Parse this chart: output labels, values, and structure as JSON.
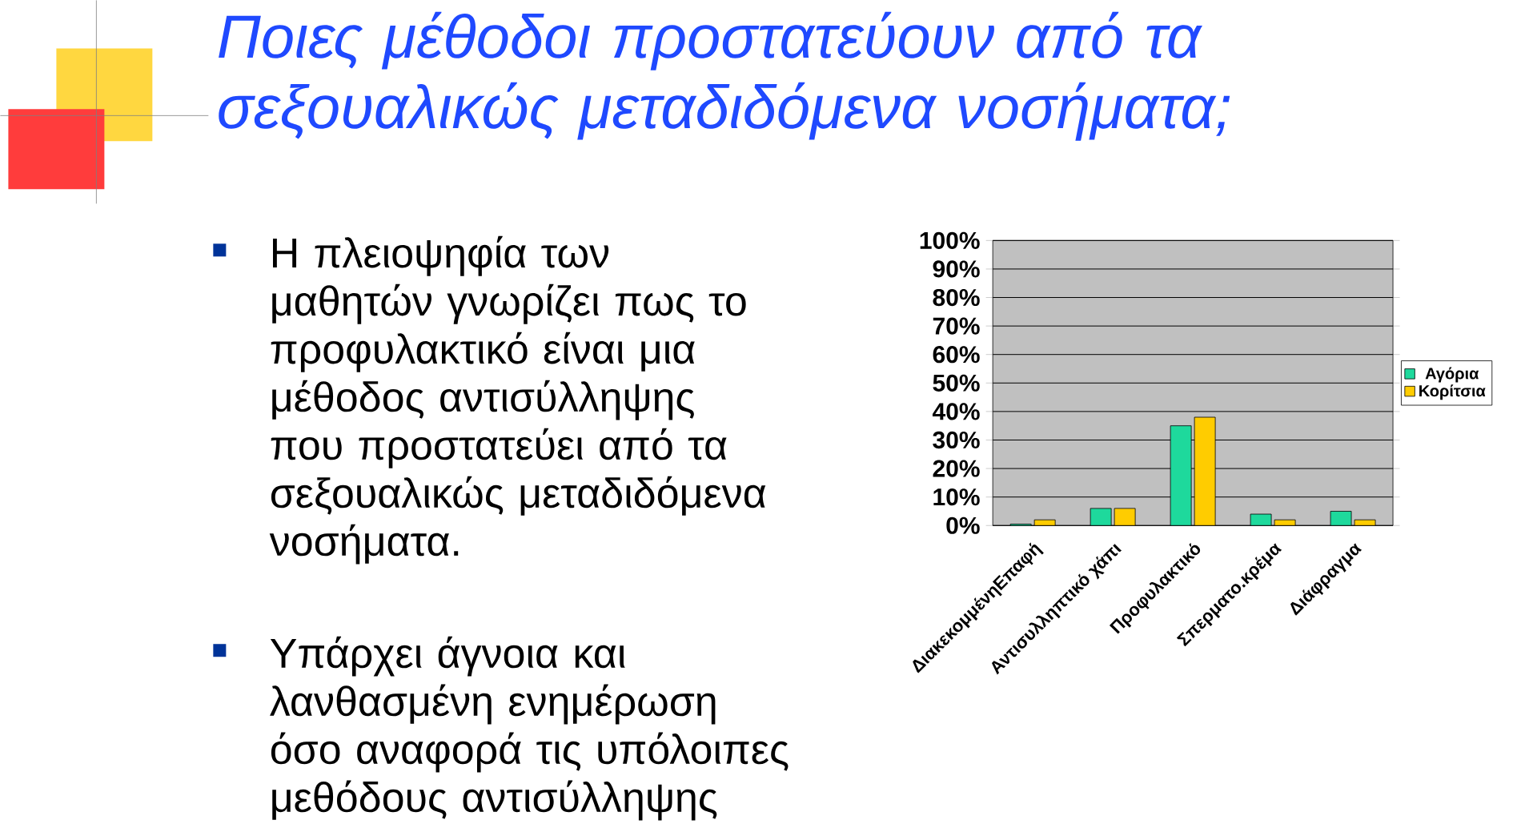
{
  "chart_data": {
    "type": "bar",
    "title": "Ποιες μέθοδοι προστατεύουν από τα σεξουαλικώς μεταδιδόμενα νοσήματα;",
    "annotations": [
      "Η πλειοψηφία των μαθητών γνωρίζει πως το προφυλακτικό είναι μια μέθοδος αντισύλληψης που προστατεύει από τα σεξουαλικώς μεταδιδόμενα νοσήματα.",
      "Υπάρχει άγνοια και λανθασμένη ενημέρωση όσο αναφορά τις υπόλοιπες μεθόδους αντισύλληψης"
    ],
    "categories": [
      "ΔιακεκομμένηΕπαφή",
      "Αντισυλληπτικό χάπι",
      "Προφυλακτικό",
      "Σπερματο.κρέμα",
      "Διάφραγμα"
    ],
    "series": [
      {
        "name": "Αγόρια",
        "color": "#1ed99c",
        "values": [
          0.5,
          6,
          35,
          4,
          5
        ]
      },
      {
        "name": "Κορίτσια",
        "color": "#ffcc00",
        "values": [
          2,
          6,
          38,
          2,
          2
        ]
      }
    ],
    "ylim": [
      0,
      100
    ],
    "yticks": [
      {
        "value": 0,
        "label": "0%"
      },
      {
        "value": 10,
        "label": "10%"
      },
      {
        "value": 20,
        "label": "20%"
      },
      {
        "value": 30,
        "label": "30%"
      },
      {
        "value": 40,
        "label": "40%"
      },
      {
        "value": 50,
        "label": "50%"
      },
      {
        "value": 60,
        "label": "60%"
      },
      {
        "value": 70,
        "label": "70%"
      },
      {
        "value": 80,
        "label": "80%"
      },
      {
        "value": 90,
        "label": "90%"
      },
      {
        "value": 100,
        "label": "100%"
      }
    ],
    "grid": "y",
    "legend": "right"
  }
}
